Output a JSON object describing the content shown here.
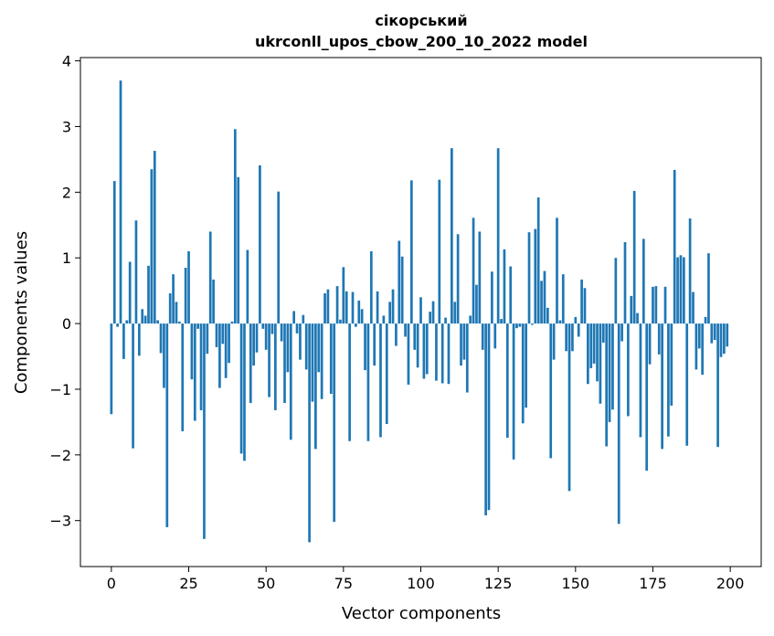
{
  "chart_data": {
    "type": "bar",
    "title": "сікорський",
    "subtitle": "ukrconll_upos_cbow_200_10_2022 model",
    "xlabel": "Vector components",
    "ylabel": "Components values",
    "xlim": [
      -10,
      210
    ],
    "ylim": [
      -3.7,
      4.05
    ],
    "xticks": [
      0,
      25,
      50,
      75,
      100,
      125,
      150,
      175,
      200
    ],
    "yticks": [
      -3,
      -2,
      -1,
      0,
      1,
      2,
      3,
      4
    ],
    "grid": false,
    "bar_color": "#1f77b4",
    "values": [
      -1.38,
      2.17,
      -0.05,
      3.7,
      -0.54,
      0.05,
      0.94,
      -1.9,
      1.57,
      -0.49,
      0.22,
      0.12,
      0.88,
      2.35,
      2.63,
      0.05,
      -0.45,
      -0.98,
      -3.1,
      0.46,
      0.75,
      0.33,
      0.03,
      -1.64,
      0.85,
      1.1,
      -0.85,
      -1.48,
      -0.08,
      -1.32,
      -3.28,
      -0.46,
      1.4,
      0.67,
      -0.36,
      -0.98,
      -0.31,
      -0.83,
      -0.6,
      0.03,
      2.96,
      2.23,
      -1.98,
      -2.09,
      1.12,
      -1.21,
      -0.64,
      -0.44,
      2.41,
      -0.08,
      -0.4,
      -1.12,
      -0.16,
      -1.32,
      2.01,
      -0.27,
      -1.21,
      -0.74,
      -1.77,
      0.19,
      -0.15,
      -0.55,
      0.13,
      -0.7,
      -3.33,
      -1.19,
      -1.91,
      -0.74,
      -1.15,
      0.46,
      0.52,
      -1.07,
      -3.02,
      0.57,
      0.06,
      0.86,
      0.49,
      -1.79,
      0.48,
      -0.05,
      0.35,
      0.22,
      -0.71,
      -1.79,
      1.1,
      -0.64,
      0.49,
      -1.73,
      0.12,
      -1.53,
      0.33,
      0.52,
      -0.34,
      1.26,
      1.02,
      -0.2,
      -0.93,
      2.18,
      -0.4,
      -0.67,
      0.4,
      -0.84,
      -0.77,
      0.18,
      0.34,
      -0.87,
      2.19,
      -0.91,
      0.09,
      -0.92,
      2.67,
      0.33,
      1.36,
      -0.64,
      -0.55,
      -1.05,
      0.12,
      1.61,
      0.59,
      1.4,
      -0.4,
      -2.92,
      -2.84,
      0.79,
      -0.38,
      2.67,
      0.07,
      1.13,
      -1.74,
      0.87,
      -2.07,
      -0.07,
      -0.05,
      -1.52,
      -1.28,
      1.39,
      -0.02,
      1.44,
      1.92,
      0.65,
      0.8,
      0.24,
      -2.05,
      -0.55,
      1.61,
      0.05,
      0.75,
      -0.42,
      -2.55,
      -0.42,
      0.1,
      -0.2,
      0.67,
      0.54,
      -0.92,
      -0.68,
      -0.61,
      -0.88,
      -1.22,
      -0.29,
      -1.87,
      -1.5,
      -1.31,
      1.0,
      -3.05,
      -0.27,
      1.24,
      -1.41,
      0.42,
      2.02,
      0.16,
      -1.73,
      1.29,
      -2.24,
      -0.62,
      0.56,
      0.57,
      -0.47,
      -1.91,
      0.56,
      -1.72,
      -1.25,
      2.34,
      1.01,
      1.04,
      1.01,
      -1.86,
      1.6,
      0.48,
      -0.7,
      -0.38,
      -0.78,
      0.1,
      1.07,
      -0.3,
      -0.25,
      -1.88,
      -0.51,
      -0.46,
      -0.35
    ]
  }
}
